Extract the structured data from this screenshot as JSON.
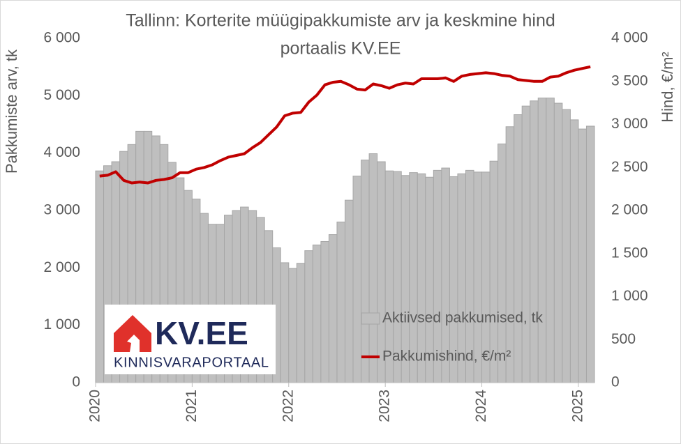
{
  "chart_data": {
    "type": "combo",
    "title": [
      "Tallinn: Korterite müügipakkumiste arv ja keskmine hind",
      "portaalis KV.EE"
    ],
    "y_label": "Pakkumiste arv, tk",
    "y2_label": "Hind, €/m²",
    "categories": [
      "2020",
      null,
      null,
      null,
      null,
      null,
      null,
      null,
      null,
      null,
      null,
      null,
      "2021",
      null,
      null,
      null,
      null,
      null,
      null,
      null,
      null,
      null,
      null,
      null,
      "2022",
      null,
      null,
      null,
      null,
      null,
      null,
      null,
      null,
      null,
      null,
      null,
      "2023",
      null,
      null,
      null,
      null,
      null,
      null,
      null,
      null,
      null,
      null,
      null,
      "2024",
      null,
      null,
      null,
      null,
      null,
      null,
      null,
      null,
      null,
      null,
      null,
      "2025",
      null
    ],
    "series": [
      {
        "name": "Aktiivsed pakkumised, tk",
        "type": "bar",
        "color": "#bfbfbf",
        "values": [
          3690,
          3780,
          3850,
          4030,
          4150,
          4380,
          4380,
          4300,
          4150,
          3840,
          3570,
          3350,
          3200,
          2950,
          2760,
          2760,
          2920,
          3000,
          3060,
          3000,
          2880,
          2650,
          2350,
          2090,
          1990,
          2080,
          2300,
          2400,
          2460,
          2580,
          2800,
          3180,
          3600,
          3880,
          3990,
          3850,
          3690,
          3680,
          3610,
          3660,
          3640,
          3580,
          3700,
          3740,
          3590,
          3640,
          3700,
          3670,
          3670,
          3860,
          4160,
          4460,
          4670,
          4820,
          4910,
          4960,
          4960,
          4870,
          4760,
          4580,
          4420,
          4470
        ]
      },
      {
        "name": "Pakkumishind, €/m²",
        "type": "line",
        "axis": "y2",
        "color": "#c00000",
        "values": [
          2400,
          2410,
          2450,
          2350,
          2320,
          2330,
          2320,
          2350,
          2360,
          2380,
          2440,
          2440,
          2480,
          2500,
          2530,
          2580,
          2620,
          2640,
          2660,
          2730,
          2790,
          2880,
          2970,
          3100,
          3130,
          3140,
          3260,
          3340,
          3460,
          3490,
          3500,
          3460,
          3410,
          3400,
          3470,
          3450,
          3420,
          3460,
          3480,
          3470,
          3530,
          3530,
          3530,
          3540,
          3500,
          3560,
          3580,
          3590,
          3600,
          3590,
          3570,
          3560,
          3520,
          3510,
          3500,
          3500,
          3550,
          3560,
          3600,
          3630,
          3650,
          3670
        ]
      }
    ],
    "ylim": [
      0,
      6000
    ],
    "yticks": [
      0,
      {
        "value": 1000,
        "label": "1 000"
      },
      {
        "value": 2000,
        "label": "2 000"
      },
      {
        "value": 3000,
        "label": "3 000"
      },
      {
        "value": 4000,
        "label": "4 000"
      },
      {
        "value": 5000,
        "label": "5 000"
      },
      {
        "value": 6000,
        "label": "6 000"
      }
    ],
    "y2lim": [
      0,
      4000
    ],
    "y2ticks": [
      0,
      500,
      {
        "value": 1000,
        "label": "1 000"
      },
      {
        "value": 1500,
        "label": "1 500"
      },
      {
        "value": 2000,
        "label": "2 000"
      },
      {
        "value": 2500,
        "label": "2 500"
      },
      {
        "value": 3000,
        "label": "3 000"
      },
      {
        "value": 3500,
        "label": "3 500"
      },
      {
        "value": 4000,
        "label": "4 000"
      }
    ],
    "grid": false
  },
  "logo": {
    "name": "KV.EE",
    "tagline": "KINNISVARAPORTAAL"
  }
}
